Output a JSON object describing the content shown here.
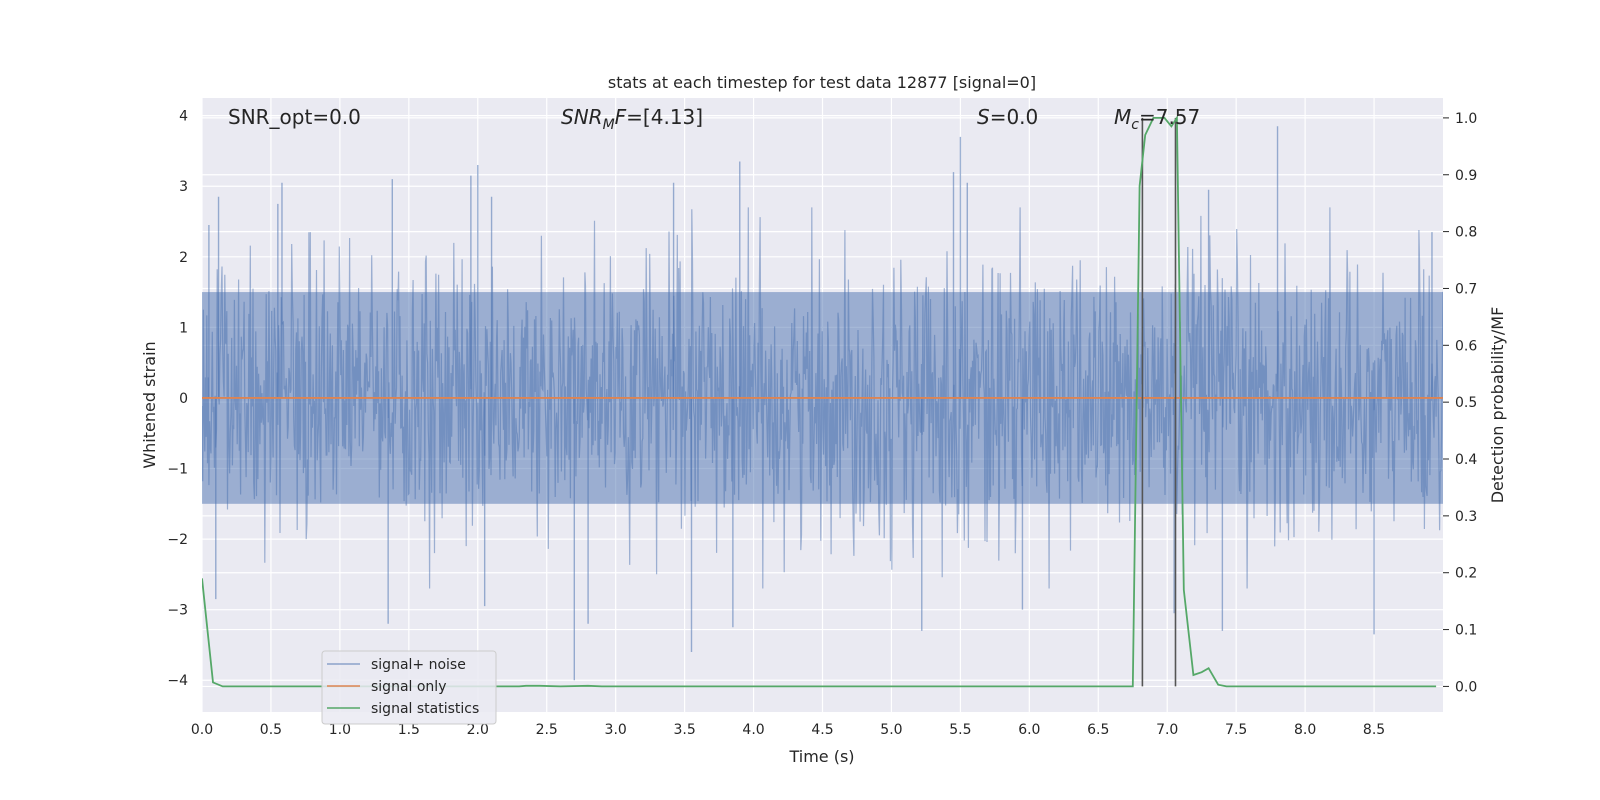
{
  "chart_data": {
    "type": "line",
    "title": "stats at each timestep for test data 12877 [signal=0]",
    "xlabel": "Time (s)",
    "ylabel_left": "Whitened strain",
    "ylabel_right": "Detection probability/MF",
    "xlim": [
      0,
      9.0
    ],
    "ylim_left": [
      -4.45,
      4.25
    ],
    "ylim_right": [
      -0.045,
      1.035
    ],
    "x_ticks": [
      0.0,
      0.5,
      1.0,
      1.5,
      2.0,
      2.5,
      3.0,
      3.5,
      4.0,
      4.5,
      5.0,
      5.5,
      6.0,
      6.5,
      7.0,
      7.5,
      8.0,
      8.5
    ],
    "x_tick_labels": [
      "0.0",
      "0.5",
      "1.0",
      "1.5",
      "2.0",
      "2.5",
      "3.0",
      "3.5",
      "4.0",
      "4.5",
      "5.0",
      "5.5",
      "6.0",
      "6.5",
      "7.0",
      "7.5",
      "8.0",
      "8.5"
    ],
    "y_left_ticks": [
      4,
      3,
      2,
      1,
      0,
      -1,
      -2,
      -3,
      -4
    ],
    "y_left_tick_labels": [
      "4",
      "3",
      "2",
      "1",
      "0",
      "−1",
      "−2",
      "−3",
      "−4"
    ],
    "y_right_ticks": [
      1.0,
      0.9,
      0.8,
      0.7,
      0.6,
      0.5,
      0.4,
      0.3,
      0.2,
      0.1,
      0.0
    ],
    "y_right_tick_labels": [
      "1.0",
      "0.9",
      "0.8",
      "0.7",
      "0.6",
      "0.5",
      "0.4",
      "0.3",
      "0.2",
      "0.1",
      "0.0"
    ],
    "grid": true,
    "legend_position": "lower-left",
    "annotations": {
      "snr_opt": "SNR_opt=0.0",
      "snr_mf_sym": "SNR",
      "snr_mf_sub": "M",
      "snr_mf_sym2": "F",
      "snr_mf_val": "=[4.13]",
      "s_sym": "S",
      "s_val": "=0.0",
      "mc_sym": "M",
      "mc_sub": "c",
      "mc_val": "=7.57"
    },
    "vertical_lines_x": [
      6.82,
      7.06
    ],
    "series": [
      {
        "name": "signal+ noise",
        "color": "#4c72b0",
        "axis": "left",
        "style": "noise band",
        "band_core": [
          -1.5,
          1.5
        ],
        "sample_count": 1800,
        "peak_points": [
          {
            "x": 0.05,
            "y": 2.45
          },
          {
            "x": 0.12,
            "y": 2.85
          },
          {
            "x": 0.55,
            "y": 2.75
          },
          {
            "x": 0.58,
            "y": 3.05
          },
          {
            "x": 1.38,
            "y": 3.1
          },
          {
            "x": 1.95,
            "y": 3.15
          },
          {
            "x": 2.0,
            "y": 3.3
          },
          {
            "x": 2.1,
            "y": 2.85
          },
          {
            "x": 3.42,
            "y": 3.05
          },
          {
            "x": 3.9,
            "y": 3.35
          },
          {
            "x": 5.45,
            "y": 3.2
          },
          {
            "x": 5.5,
            "y": 3.7
          },
          {
            "x": 5.55,
            "y": 3.05
          },
          {
            "x": 7.8,
            "y": 3.85
          },
          {
            "x": 7.3,
            "y": 2.95
          },
          {
            "x": 8.92,
            "y": 2.35
          }
        ],
        "trough_points": [
          {
            "x": 0.1,
            "y": -2.85
          },
          {
            "x": 1.35,
            "y": -3.2
          },
          {
            "x": 2.05,
            "y": -2.95
          },
          {
            "x": 2.7,
            "y": -4.0
          },
          {
            "x": 2.8,
            "y": -3.2
          },
          {
            "x": 3.55,
            "y": -3.6
          },
          {
            "x": 3.85,
            "y": -3.25
          },
          {
            "x": 5.22,
            "y": -3.3
          },
          {
            "x": 5.95,
            "y": -3.0
          },
          {
            "x": 7.05,
            "y": -3.05
          },
          {
            "x": 7.4,
            "y": -3.3
          },
          {
            "x": 8.5,
            "y": -3.35
          }
        ]
      },
      {
        "name": "signal only",
        "color": "#dd8452",
        "axis": "left",
        "x": [
          0,
          9.0
        ],
        "y": [
          0,
          0
        ]
      },
      {
        "name": "signal statistics",
        "color": "#55a868",
        "axis": "right",
        "x": [
          0.0,
          0.08,
          0.15,
          0.5,
          1.0,
          2.0,
          2.3,
          2.35,
          2.45,
          2.6,
          2.8,
          2.9,
          3.5,
          4.0,
          5.0,
          6.0,
          6.75,
          6.8,
          6.84,
          6.9,
          6.98,
          7.03,
          7.07,
          7.12,
          7.19,
          7.25,
          7.3,
          7.37,
          7.43,
          8.0,
          8.95
        ],
        "y": [
          0.19,
          0.007,
          0.0,
          0.0,
          0.0,
          0.0,
          0.0,
          0.001,
          0.001,
          0.0,
          0.001,
          0.0,
          0.0,
          0.0,
          0.0,
          0.0,
          0.0,
          0.88,
          0.97,
          1.0,
          1.0,
          0.985,
          1.0,
          0.17,
          0.02,
          0.025,
          0.032,
          0.003,
          0.0,
          0.0,
          0.0
        ]
      }
    ]
  }
}
